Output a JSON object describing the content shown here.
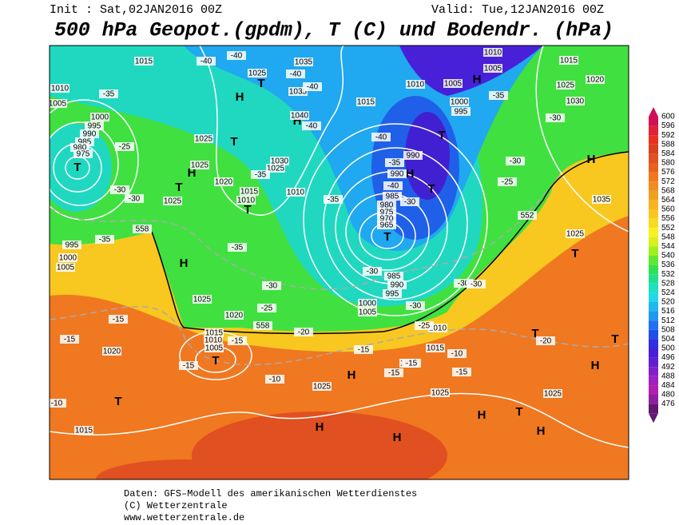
{
  "header": {
    "init": "Init : Sat,02JAN2016 00Z",
    "valid": "Valid: Tue,12JAN2016 00Z",
    "title": "500 hPa Geopot.(gpdm), T (C) und Bodendr. (hPa)"
  },
  "colorbar": {
    "levels": [
      600,
      596,
      592,
      588,
      584,
      580,
      576,
      572,
      568,
      564,
      560,
      556,
      552,
      548,
      544,
      540,
      536,
      532,
      528,
      524,
      520,
      516,
      512,
      508,
      504,
      500,
      496,
      492,
      488,
      484,
      480,
      476
    ],
    "colors": [
      "#d01058",
      "#e0203c",
      "#e83020",
      "#d84020",
      "#e05020",
      "#e86020",
      "#f07820",
      "#f08c20",
      "#f0a020",
      "#f8b420",
      "#f8c820",
      "#f8dc20",
      "#f8f020",
      "#d8f020",
      "#a0f020",
      "#60e830",
      "#30e050",
      "#20e090",
      "#20e0c0",
      "#20d8e8",
      "#20b8f0",
      "#2098f0",
      "#2070f0",
      "#2050e8",
      "#3030e0",
      "#4820d8",
      "#6020d0",
      "#8020c8",
      "#a020c0",
      "#b020b0",
      "#9020a0",
      "#601870"
    ]
  },
  "map": {
    "centers": [
      "T",
      "H",
      "T",
      "H",
      "H",
      "T",
      "H",
      "T",
      "T",
      "H",
      "T",
      "H",
      "H",
      "T",
      "H",
      "T",
      "H",
      "H",
      "T",
      "T",
      "H",
      "T",
      "H",
      "H",
      "T",
      "T",
      "T"
    ],
    "isobar_labels": [
      "1015",
      "1010",
      "1005",
      "1000",
      "995",
      "990",
      "985",
      "980",
      "975",
      "1025",
      "1025",
      "1020",
      "1015",
      "1010",
      "1025",
      "1030",
      "1025",
      "1010",
      "1035",
      "1025",
      "1035",
      "1040",
      "1015",
      "1010",
      "1005",
      "1000",
      "995",
      "990",
      "990",
      "985",
      "980",
      "975",
      "970",
      "965",
      "985",
      "990",
      "995",
      "1000",
      "1005",
      "1010",
      "1015",
      "1010",
      "1025",
      "1025",
      "1025",
      "1015",
      "995",
      "1000",
      "1005",
      "1025",
      "1020",
      "1015",
      "1010",
      "1005",
      "1020",
      "1010",
      "1015",
      "1005",
      "1025",
      "1020",
      "1030",
      "1035",
      "1025"
    ],
    "temperature_labels": [
      "-40",
      "-40",
      "-40",
      "-35",
      "-25",
      "-30",
      "-30",
      "-35",
      "-40",
      "-40",
      "-40",
      "-35",
      "-40",
      "-30",
      "-35",
      "-30",
      "-30",
      "-25",
      "-35",
      "-30",
      "-25",
      "-20",
      "-15",
      "-15",
      "-15",
      "-15",
      "-10",
      "-15",
      "-15",
      "-15",
      "-15",
      "-10",
      "-25",
      "-30",
      "-30",
      "-35",
      "-30",
      "-30",
      "-20",
      "-10",
      "-35"
    ],
    "height_labels": [
      "558",
      "558",
      "552"
    ]
  },
  "footer": {
    "source": "Daten: GFS–Modell des amerikanischen Wetterdienstes",
    "copyright": "(C) Wetterzentrale",
    "url": "www.wetterzentrale.de"
  }
}
